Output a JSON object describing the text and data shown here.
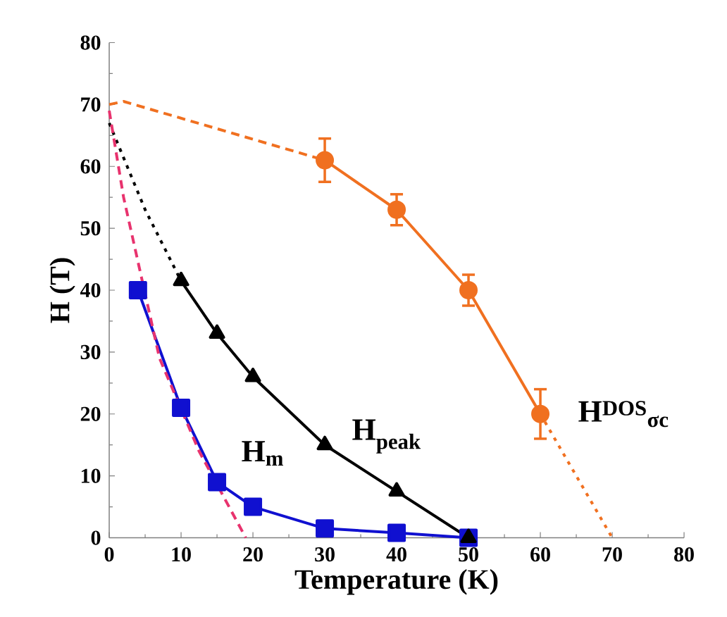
{
  "chart_data": {
    "type": "line",
    "xlabel": "Temperature (K)",
    "ylabel": "H (T)",
    "xlim": [
      0,
      80
    ],
    "ylim": [
      0,
      80
    ],
    "xticks": [
      0,
      10,
      20,
      30,
      40,
      50,
      60,
      70,
      80
    ],
    "yticks": [
      0,
      10,
      20,
      30,
      40,
      50,
      60,
      70,
      80
    ],
    "grid": false,
    "series": [
      {
        "name": "H$_{m}$",
        "color": "#1010d0",
        "x": [
          4,
          10,
          15,
          20,
          30,
          40,
          50
        ],
        "values": [
          40,
          21,
          9,
          5,
          1.5,
          0.8,
          0
        ],
        "marker": "square",
        "line_style": "solid"
      },
      {
        "name": "H$_{peak}$",
        "color": "#000000",
        "x": [
          10,
          15,
          20,
          30,
          40,
          50
        ],
        "values": [
          41.5,
          33,
          26,
          15,
          7.5,
          0
        ],
        "marker": "triangle",
        "line_style": "solid"
      },
      {
        "name": "H$^{DOS}$$_{σc}$",
        "color": "#f07020",
        "x": [
          30,
          40,
          50,
          60
        ],
        "values": [
          61,
          53,
          40,
          20
        ],
        "errors": [
          3.5,
          2.5,
          2.5,
          4
        ],
        "marker": "circle",
        "line_style": "solid"
      },
      {
        "color": "#000000",
        "x": [
          0,
          5,
          10
        ],
        "values": [
          67,
          53,
          41.5
        ],
        "marker": "none",
        "line_style": "dotted"
      },
      {
        "color": "#f07020",
        "x": [
          0,
          2,
          30
        ],
        "values": [
          70,
          70.5,
          61
        ],
        "marker": "none",
        "line_style": "dashed"
      },
      {
        "color": "#f07020",
        "x": [
          60,
          70
        ],
        "values": [
          20,
          0
        ],
        "marker": "none",
        "line_style": "dotted"
      },
      {
        "color": "#e8336e",
        "x": [
          0,
          2,
          7,
          12.5,
          19
        ],
        "values": [
          69,
          55,
          29,
          14,
          0
        ],
        "marker": "none",
        "line_style": "dashed"
      }
    ]
  }
}
